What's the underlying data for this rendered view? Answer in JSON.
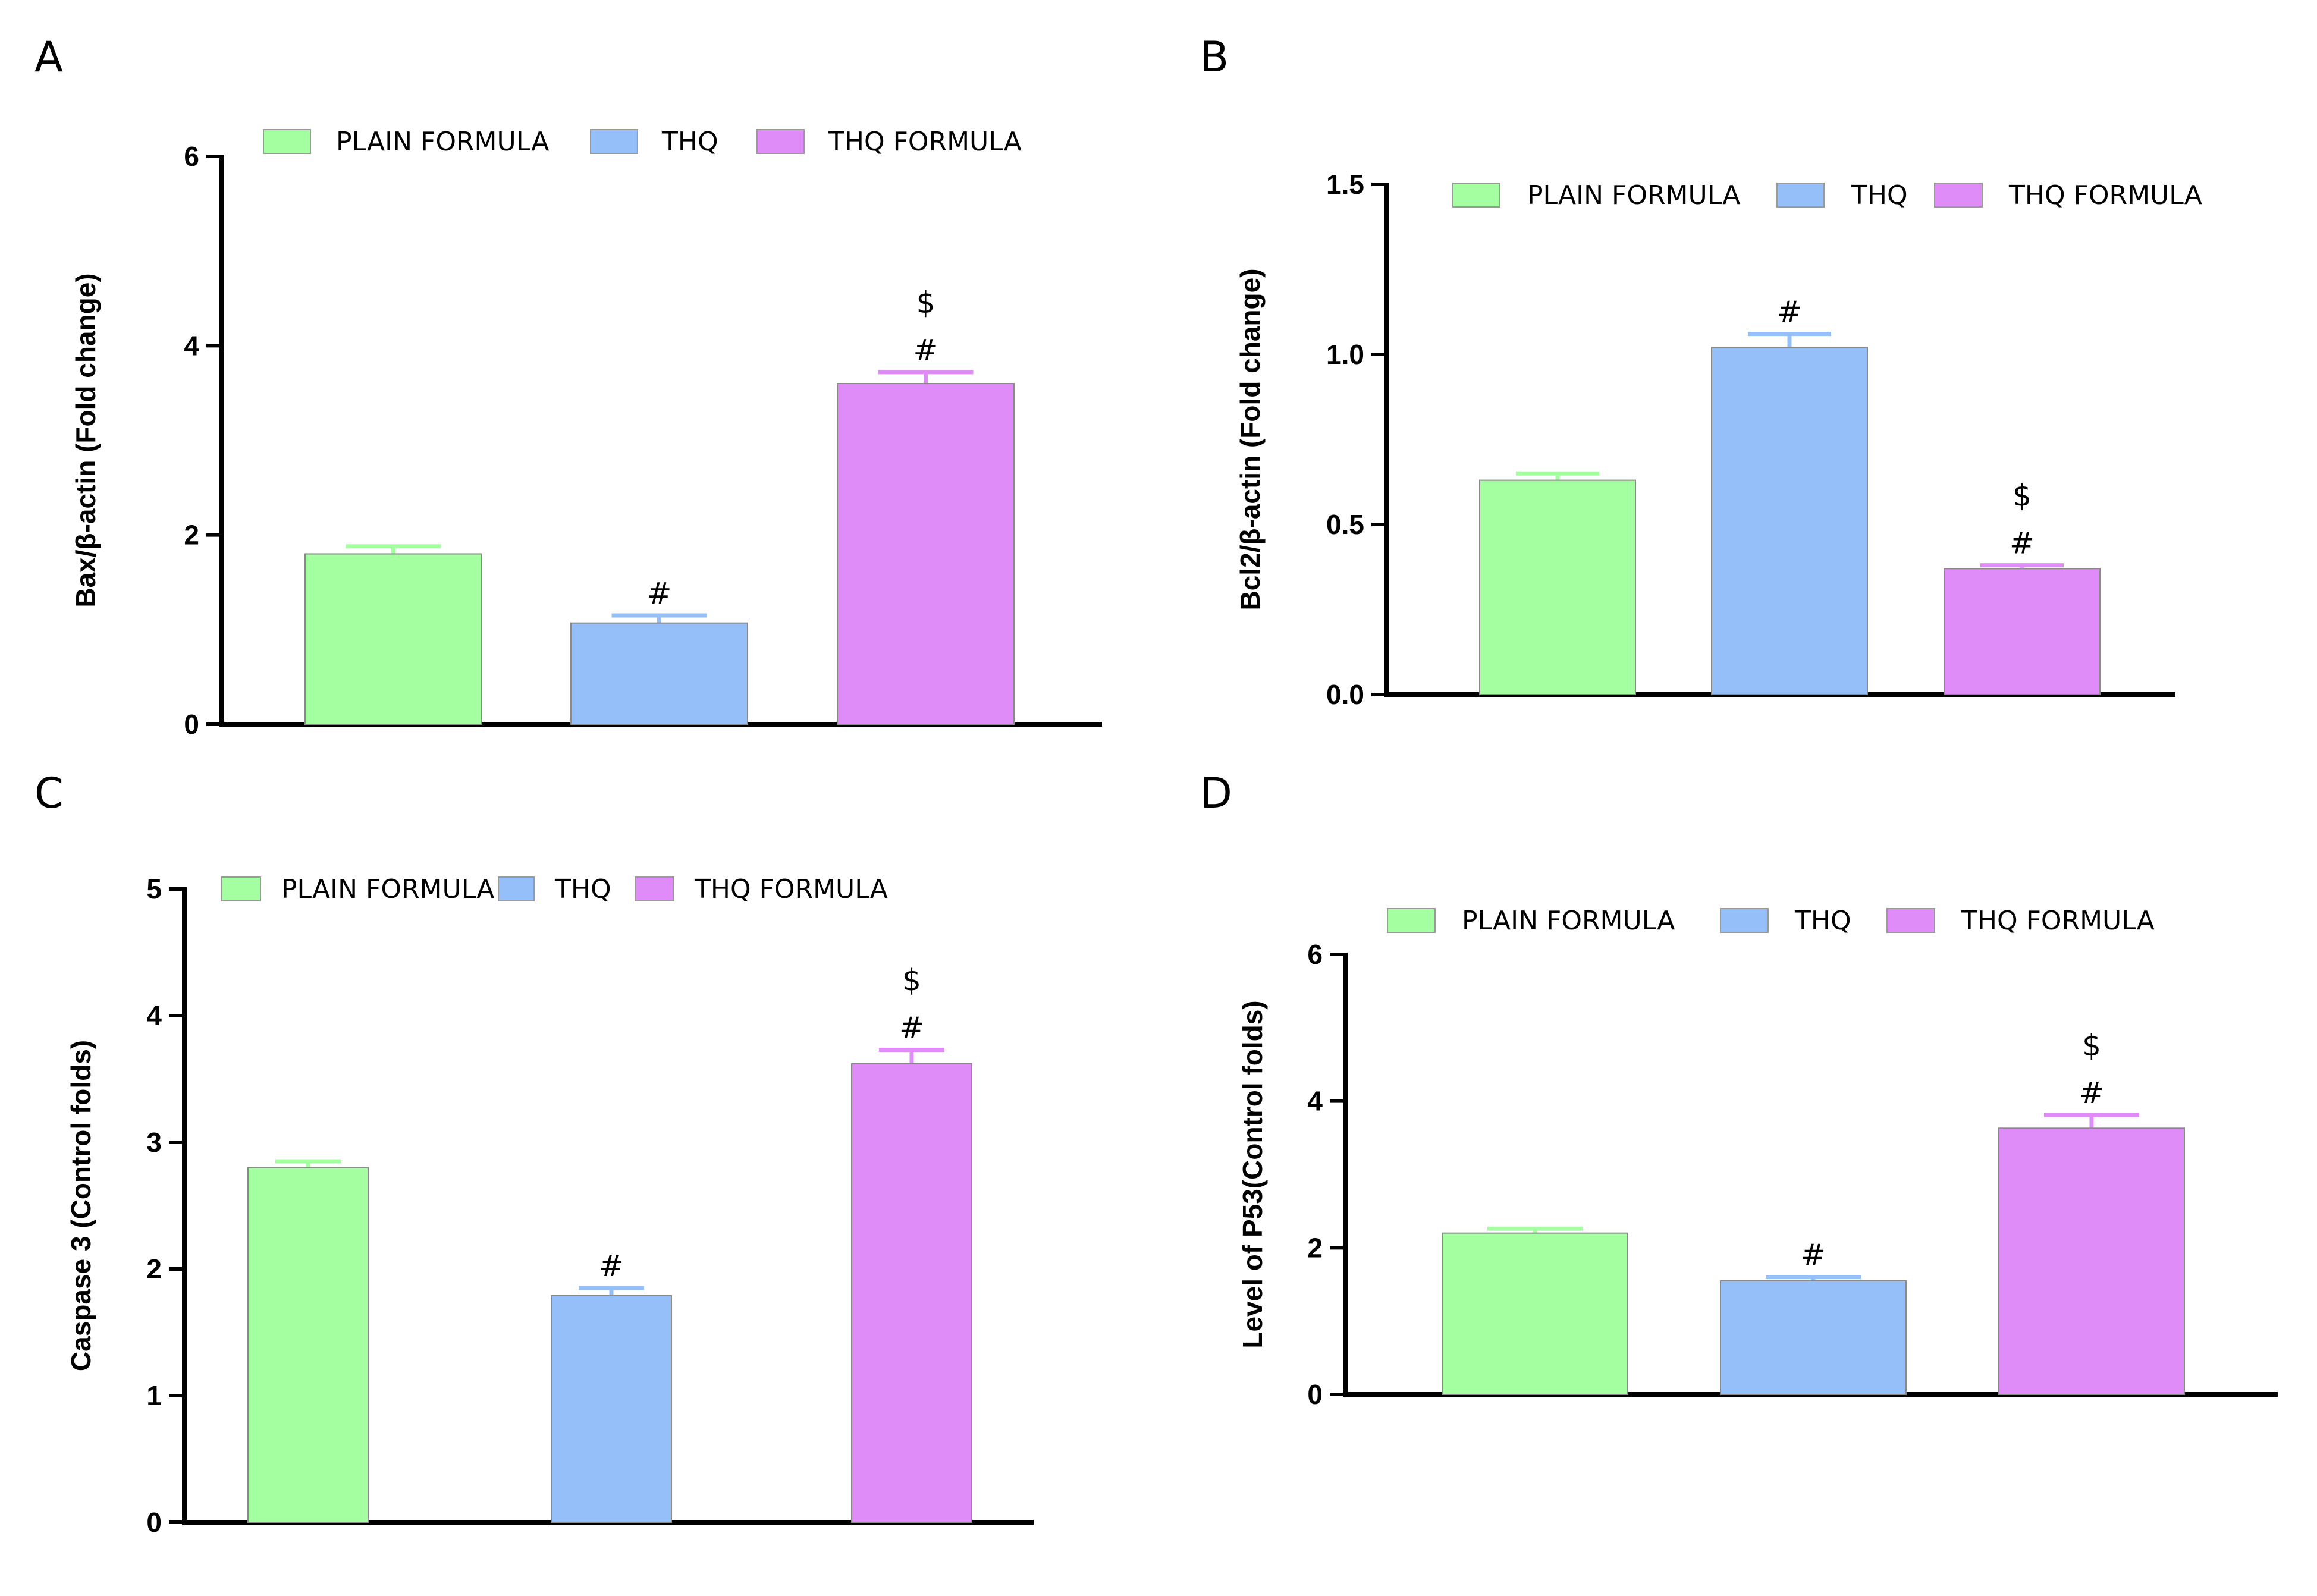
{
  "chart_data": [
    {
      "panel": "A",
      "type": "bar",
      "categories": [
        "PLAIN FORMULA",
        "THQ",
        "THQ FORMULA"
      ],
      "values": [
        1.8,
        1.07,
        3.6
      ],
      "errors": [
        0.08,
        0.08,
        0.12
      ],
      "significance": [
        [],
        [
          "#"
        ],
        [
          "#",
          "$"
        ]
      ],
      "ylabel": "Bax/β-actin (Fold change)",
      "xlabel": "",
      "ylim": [
        0,
        6
      ],
      "yticks": [
        0,
        2,
        4,
        6
      ],
      "tick_labels": [
        "0",
        "2",
        "4",
        "6"
      ],
      "legend": [
        "PLAIN FORMULA",
        "THQ",
        "THQ FORMULA"
      ],
      "colors": [
        "#a3ff9f",
        "#94bff8",
        "#df8cf8"
      ]
    },
    {
      "panel": "B",
      "type": "bar",
      "categories": [
        "PLAIN FORMULA",
        "THQ",
        "THQ FORMULA"
      ],
      "values": [
        0.63,
        1.02,
        0.37
      ],
      "errors": [
        0.02,
        0.04,
        0.01
      ],
      "significance": [
        [],
        [
          "#"
        ],
        [
          "#",
          "$"
        ]
      ],
      "ylabel": "Bcl2/β-actin (Fold change)",
      "xlabel": "",
      "ylim": [
        0,
        1.5
      ],
      "yticks": [
        0,
        0.5,
        1.0,
        1.5
      ],
      "tick_labels": [
        "0.0",
        "0.5",
        "1.0",
        "1.5"
      ],
      "legend": [
        "PLAIN FORMULA",
        "THQ",
        "THQ FORMULA"
      ],
      "colors": [
        "#a3ff9f",
        "#94bff8",
        "#df8cf8"
      ]
    },
    {
      "panel": "C",
      "type": "bar",
      "categories": [
        "PLAIN FORMULA",
        "THQ",
        "THQ FORMULA"
      ],
      "values": [
        2.8,
        1.79,
        3.62
      ],
      "errors": [
        0.05,
        0.06,
        0.11
      ],
      "significance": [
        [],
        [
          "#"
        ],
        [
          "#",
          "$"
        ]
      ],
      "ylabel": "Caspase 3 (Control folds)",
      "xlabel": "",
      "ylim": [
        0,
        5
      ],
      "yticks": [
        0,
        1,
        2,
        3,
        4,
        5
      ],
      "tick_labels": [
        "0",
        "1",
        "2",
        "3",
        "4",
        "5"
      ],
      "legend": [
        "PLAIN FORMULA",
        "THQ",
        "THQ FORMULA"
      ],
      "colors": [
        "#a3ff9f",
        "#94bff8",
        "#df8cf8"
      ]
    },
    {
      "panel": "D",
      "type": "bar",
      "categories": [
        "PLAIN FORMULA",
        "THQ",
        "THQ FORMULA"
      ],
      "values": [
        2.2,
        1.55,
        3.63
      ],
      "errors": [
        0.06,
        0.05,
        0.18
      ],
      "significance": [
        [],
        [
          "#"
        ],
        [
          "#",
          "$"
        ]
      ],
      "ylabel": "Level of P53(Control folds)",
      "xlabel": "",
      "ylim": [
        0,
        6
      ],
      "yticks": [
        0,
        2,
        4,
        6
      ],
      "tick_labels": [
        "0",
        "2",
        "4",
        "6"
      ],
      "legend": [
        "PLAIN FORMULA",
        "THQ",
        "THQ FORMULA"
      ],
      "colors": [
        "#a3ff9f",
        "#94bff8",
        "#df8cf8"
      ]
    }
  ]
}
